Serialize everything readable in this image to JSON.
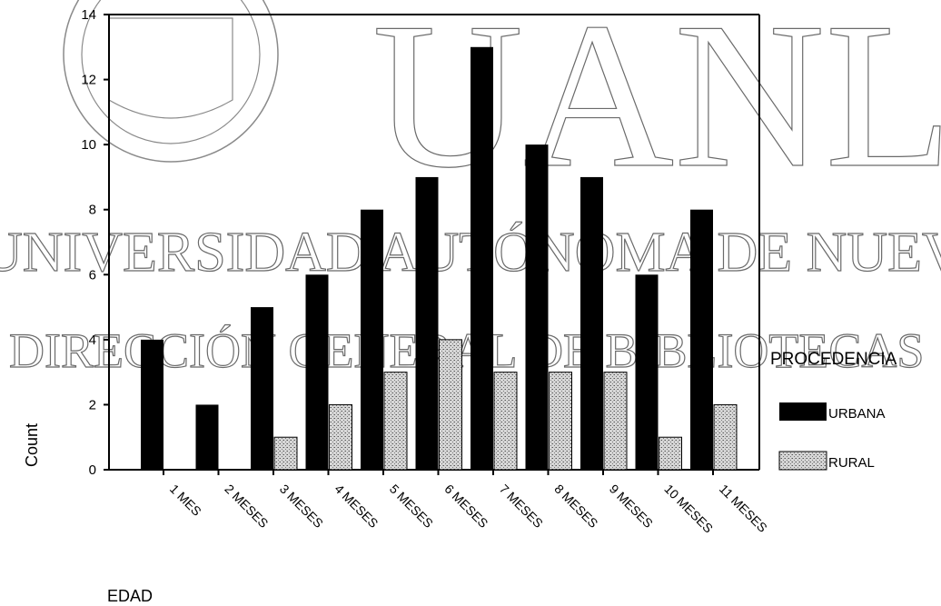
{
  "watermark": {
    "big": "UANL",
    "line1": "UNIVERSIDAD AUTÓNOMA DE NUEVO LEÓN",
    "line2": "DIRECCIÓN GENERAL DE BIBLIOTECAS"
  },
  "chart_data": {
    "type": "bar",
    "xlabel": "EDAD",
    "ylabel": "Count",
    "ylim": [
      0,
      14
    ],
    "yticks": [
      0,
      2,
      4,
      6,
      8,
      10,
      12,
      14
    ],
    "grid": false,
    "legend_title": "PROCEDENCIA",
    "legend_position": "right",
    "categories": [
      "1 MES",
      "2 MESES",
      "3 MESES",
      "4 MESES",
      "5 MESES",
      "6 MESES",
      "7 MESES",
      "8 MESES",
      "9 MESES",
      "10 MESES",
      "11 MESES"
    ],
    "series": [
      {
        "name": "URBANA",
        "color": "#000000",
        "values": [
          4,
          2,
          5,
          6,
          8,
          9,
          13,
          10,
          9,
          6,
          8
        ]
      },
      {
        "name": "RURAL",
        "color": "#c8c8c8",
        "values": [
          0,
          0,
          1,
          2,
          3,
          4,
          3,
          3,
          3,
          1,
          2
        ]
      }
    ]
  }
}
